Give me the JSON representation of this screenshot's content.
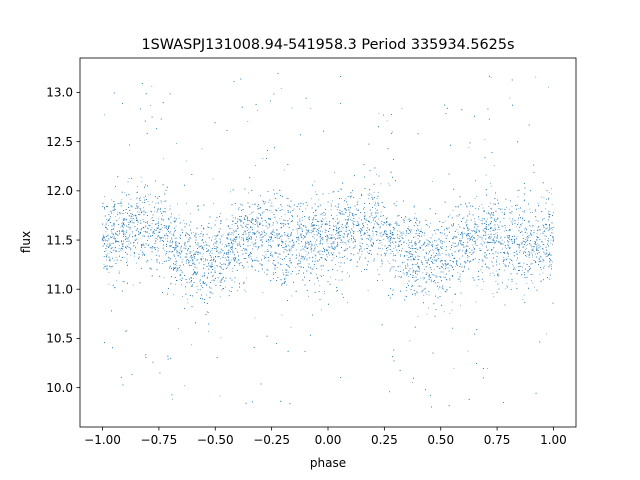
{
  "chart_data": {
    "type": "scatter",
    "title": "1SWASPJ131008.94-541958.3 Period 335934.5625s",
    "xlabel": "phase",
    "ylabel": "flux",
    "xlim": [
      -1.1,
      1.1
    ],
    "ylim": [
      9.6,
      13.35
    ],
    "xticks": [
      -1.0,
      -0.75,
      -0.5,
      -0.25,
      0.0,
      0.25,
      0.5,
      0.75,
      1.0
    ],
    "xtick_labels": [
      "−1.00",
      "−0.75",
      "−0.50",
      "−0.25",
      "0.00",
      "0.25",
      "0.50",
      "0.75",
      "1.00"
    ],
    "yticks": [
      10.0,
      10.5,
      11.0,
      11.5,
      12.0,
      12.5,
      13.0
    ],
    "ytick_labels": [
      "10.0",
      "10.5",
      "11.0",
      "11.5",
      "12.0",
      "12.5",
      "13.0"
    ],
    "grid": false,
    "legend": "none",
    "marker_color": "#1f77b4",
    "series": [
      {
        "x": [
          -1.0,
          -0.95,
          -0.9,
          -0.85,
          -0.8,
          -0.75,
          -0.7,
          -0.65,
          -0.6,
          -0.55,
          -0.5,
          -0.45,
          -0.4,
          -0.35,
          -0.3,
          -0.25,
          -0.2,
          -0.15,
          -0.1,
          -0.05,
          0.0,
          0.05,
          0.1,
          0.15,
          0.2,
          0.25,
          0.3,
          0.35,
          0.4,
          0.45,
          0.5,
          0.55,
          0.6,
          0.65,
          0.7,
          0.75,
          0.8,
          0.85,
          0.9,
          0.95,
          1.0
        ],
        "y": [
          11.5,
          11.52,
          11.56,
          11.6,
          11.62,
          11.58,
          11.48,
          11.38,
          11.3,
          11.25,
          11.28,
          11.36,
          11.45,
          11.52,
          11.55,
          11.52,
          11.48,
          11.45,
          11.45,
          11.5,
          11.52,
          11.55,
          11.58,
          11.6,
          11.62,
          11.58,
          11.48,
          11.38,
          11.3,
          11.25,
          11.28,
          11.36,
          11.45,
          11.52,
          11.55,
          11.52,
          11.48,
          11.45,
          11.45,
          11.48,
          11.5
        ]
      }
    ]
  }
}
